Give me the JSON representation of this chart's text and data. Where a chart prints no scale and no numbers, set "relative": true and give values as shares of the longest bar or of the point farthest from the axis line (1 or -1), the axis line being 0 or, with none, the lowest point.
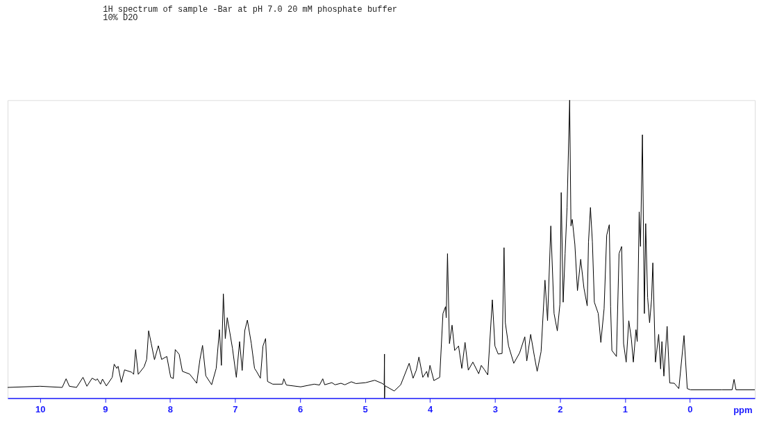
{
  "chart_data": {
    "type": "line",
    "title": "1H spectrum of sample -Bar at pH 7.0 20 mM phosphate buffer",
    "subtitle": "10% D2O",
    "xlabel": "ppm",
    "relative": true,
    "xlim": [
      10.5,
      -1.0
    ],
    "xticks": [
      10,
      9,
      8,
      7,
      6,
      5,
      4,
      3,
      2,
      1,
      0
    ],
    "grid": false,
    "legend": false,
    "line_style": "solid",
    "series": [
      {
        "color": "#000000",
        "x": [
          10.5,
          10.0,
          9.66,
          9.6,
          9.55,
          9.44,
          9.34,
          9.28,
          9.2,
          9.14,
          9.12,
          9.07,
          9.04,
          8.98,
          8.89,
          8.86,
          8.82,
          8.8,
          8.75,
          8.7,
          8.59,
          8.56,
          8.53,
          8.49,
          8.4,
          8.36,
          8.33,
          8.29,
          8.24,
          8.18,
          8.13,
          8.05,
          7.99,
          7.95,
          7.92,
          7.86,
          7.81,
          7.7,
          7.63,
          7.59,
          7.54,
          7.5,
          7.45,
          7.36,
          7.29,
          7.24,
          7.21,
          7.18,
          7.15,
          7.12,
          7.08,
          7.04,
          6.98,
          6.93,
          6.89,
          6.85,
          6.81,
          6.75,
          6.7,
          6.67,
          6.61,
          6.57,
          6.53,
          6.5,
          6.42,
          6.27,
          6.25,
          6.21,
          5.99,
          5.78,
          5.7,
          5.65,
          5.62,
          5.51,
          5.46,
          5.37,
          5.31,
          5.21,
          5.14,
          4.99,
          4.85,
          4.74,
          4.705,
          4.7,
          4.699,
          4.695,
          4.55,
          4.45,
          4.32,
          4.26,
          4.21,
          4.17,
          4.11,
          4.05,
          4.03,
          4.0,
          3.94,
          3.85,
          3.8,
          3.76,
          3.75,
          3.73,
          3.7,
          3.66,
          3.62,
          3.56,
          3.51,
          3.46,
          3.41,
          3.34,
          3.25,
          3.21,
          3.16,
          3.11,
          3.04,
          3.0,
          2.95,
          2.89,
          2.86,
          2.84,
          2.79,
          2.71,
          2.62,
          2.54,
          2.51,
          2.45,
          2.39,
          2.35,
          2.29,
          2.23,
          2.19,
          2.14,
          2.09,
          2.04,
          2.0,
          1.98,
          1.95,
          1.92,
          1.89,
          1.85,
          1.83,
          1.81,
          1.77,
          1.73,
          1.68,
          1.63,
          1.58,
          1.56,
          1.53,
          1.5,
          1.47,
          1.41,
          1.37,
          1.32,
          1.28,
          1.24,
          1.22,
          1.2,
          1.13,
          1.09,
          1.05,
          1.02,
          0.98,
          0.94,
          0.9,
          0.87,
          0.83,
          0.81,
          0.78,
          0.76,
          0.73,
          0.7,
          0.68,
          0.65,
          0.62,
          0.59,
          0.57,
          0.53,
          0.48,
          0.45,
          0.43,
          0.4,
          0.35,
          0.31,
          0.24,
          0.17,
          0.09,
          0.04,
          -0.01,
          -0.49,
          -0.65,
          -0.68,
          -0.71,
          -1.0
        ],
        "values": [
          0.036,
          0.04,
          0.036,
          0.065,
          0.04,
          0.036,
          0.07,
          0.04,
          0.067,
          0.06,
          0.065,
          0.047,
          0.064,
          0.041,
          0.07,
          0.114,
          0.1,
          0.107,
          0.053,
          0.095,
          0.087,
          0.08,
          0.163,
          0.08,
          0.105,
          0.13,
          0.226,
          0.184,
          0.129,
          0.176,
          0.13,
          0.14,
          0.07,
          0.066,
          0.163,
          0.147,
          0.09,
          0.081,
          0.062,
          0.05,
          0.13,
          0.177,
          0.075,
          0.045,
          0.1,
          0.23,
          0.11,
          0.35,
          0.2,
          0.27,
          0.22,
          0.168,
          0.07,
          0.19,
          0.093,
          0.227,
          0.262,
          0.184,
          0.1,
          0.09,
          0.067,
          0.175,
          0.2,
          0.056,
          0.047,
          0.047,
          0.065,
          0.044,
          0.038,
          0.047,
          0.044,
          0.065,
          0.045,
          0.052,
          0.045,
          0.05,
          0.045,
          0.055,
          0.049,
          0.052,
          0.06,
          0.05,
          0.045,
          0.148,
          0.0,
          0.042,
          0.024,
          0.045,
          0.117,
          0.067,
          0.094,
          0.138,
          0.07,
          0.09,
          0.07,
          0.11,
          0.059,
          0.07,
          0.284,
          0.307,
          0.27,
          0.485,
          0.183,
          0.245,
          0.16,
          0.175,
          0.1,
          0.187,
          0.094,
          0.121,
          0.082,
          0.11,
          0.095,
          0.078,
          0.33,
          0.175,
          0.148,
          0.15,
          0.505,
          0.253,
          0.175,
          0.117,
          0.152,
          0.206,
          0.125,
          0.214,
          0.137,
          0.09,
          0.156,
          0.396,
          0.26,
          0.578,
          0.284,
          0.226,
          0.315,
          0.69,
          0.322,
          0.485,
          0.64,
          1.0,
          0.578,
          0.6,
          0.516,
          0.361,
          0.466,
          0.369,
          0.31,
          0.524,
          0.64,
          0.524,
          0.322,
          0.284,
          0.187,
          0.3,
          0.547,
          0.582,
          0.307,
          0.16,
          0.14,
          0.485,
          0.509,
          0.183,
          0.121,
          0.26,
          0.198,
          0.121,
          0.23,
          0.19,
          0.625,
          0.509,
          0.884,
          0.284,
          0.586,
          0.338,
          0.253,
          0.33,
          0.454,
          0.121,
          0.214,
          0.098,
          0.19,
          0.074,
          0.241,
          0.051,
          0.05,
          0.032,
          0.21,
          0.032,
          0.028,
          0.028,
          0.028,
          0.063,
          0.028,
          0.028
        ]
      }
    ]
  }
}
